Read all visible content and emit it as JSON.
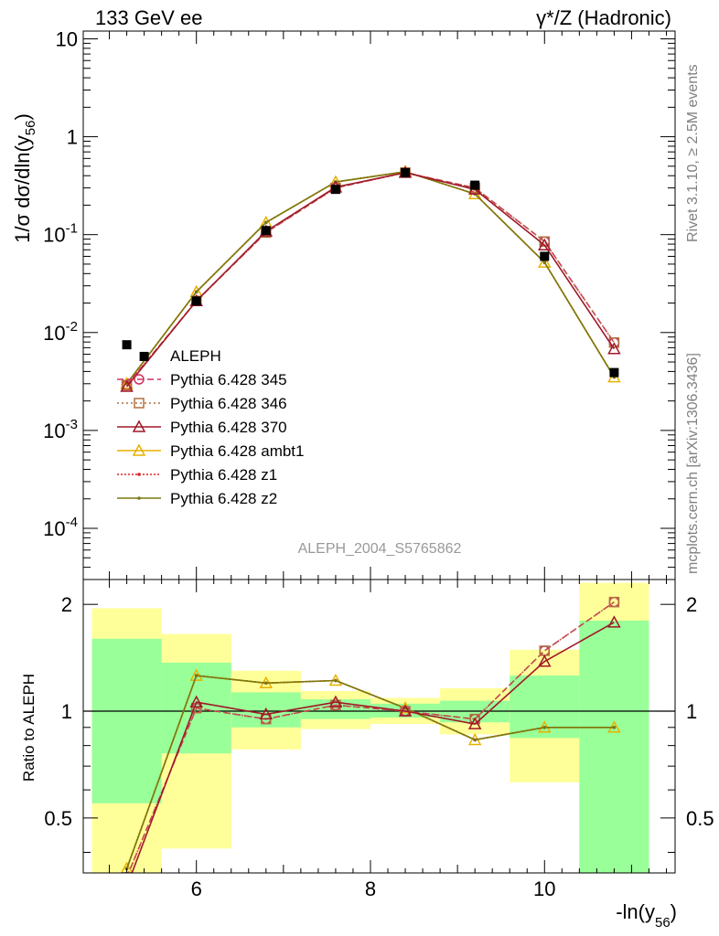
{
  "header": {
    "left": "133 GeV ee",
    "right": "γ*/Z (Hadronic)"
  },
  "side_labels": {
    "rivet": "Rivet 3.1.10, ≥ 2.5M events",
    "mcplots": "mcplots.cern.ch [arXiv:1306.3436]"
  },
  "analysis_id": "ALEPH_2004_S5765862",
  "axes": {
    "main_ylabel": "1/σ  dσ/dln(y",
    "main_ylabel_sub": "56",
    "ratio_ylabel": "Ratio to ALEPH",
    "xlabel": "-ln(y",
    "xlabel_sub": "56",
    "x_ticks": [
      "6",
      "8",
      "10"
    ],
    "main_y_ticks": [
      {
        "base": "10",
        "exp": "-4",
        "v": -4
      },
      {
        "base": "10",
        "exp": "-3",
        "v": -3
      },
      {
        "base": "10",
        "exp": "-2",
        "v": -2
      },
      {
        "base": "10",
        "exp": "-1",
        "v": -1
      },
      {
        "base": "1",
        "exp": "",
        "v": 0
      },
      {
        "base": "10",
        "exp": "",
        "v": 1
      }
    ],
    "ratio_y_ticks": [
      "0.5",
      "1",
      "2"
    ]
  },
  "colors": {
    "data": "#000000",
    "s345": "#d03060",
    "s346": "#b07040",
    "s370": "#a01828",
    "ambt1": "#e8b000",
    "z1": "#e02020",
    "z2": "#7a7a10",
    "band_inner": "#99ff99",
    "band_outer": "#ffff99",
    "analysis_text": "#999999",
    "side_text": "#808080"
  },
  "chart_data": {
    "type": "line",
    "xlim": [
      4.7,
      11.5
    ],
    "main_ylim": [
      3e-05,
      12
    ],
    "main_yscale": "log",
    "ratio_ylim": [
      0.35,
      2.35
    ],
    "ratio_yscale": "log",
    "bins": [
      {
        "lo": 4.8,
        "hi": 5.6,
        "x": 5.2,
        "y": 0.0075
      },
      {
        "lo": 5.6,
        "hi": 6.4,
        "x": 6.0,
        "y": 0.021
      },
      {
        "lo": 6.4,
        "hi": 7.2,
        "x": 6.8,
        "y": 0.11
      },
      {
        "lo": 7.2,
        "hi": 8.0,
        "x": 7.6,
        "y": 0.29
      },
      {
        "lo": 8.0,
        "hi": 8.8,
        "x": 8.4,
        "y": 0.43
      },
      {
        "lo": 8.8,
        "hi": 9.6,
        "x": 9.2,
        "y": 0.32
      },
      {
        "lo": 9.6,
        "hi": 10.4,
        "x": 10.0,
        "y": 0.06
      },
      {
        "lo": 10.4,
        "hi": 11.2,
        "x": 10.8,
        "y": 0.0039
      }
    ],
    "data_extra_points": [
      {
        "x": 5.4,
        "y": 0.0057
      }
    ],
    "ratio_band_inner": [
      [
        0.55,
        1.6
      ],
      [
        0.76,
        1.37
      ],
      [
        0.9,
        1.13
      ],
      [
        0.95,
        1.08
      ],
      [
        0.96,
        1.05
      ],
      [
        0.93,
        1.07
      ],
      [
        0.84,
        1.26
      ],
      [
        0.3,
        1.8
      ]
    ],
    "ratio_band_outer": [
      [
        0.35,
        1.95
      ],
      [
        0.41,
        1.65
      ],
      [
        0.78,
        1.3
      ],
      [
        0.89,
        1.14
      ],
      [
        0.92,
        1.09
      ],
      [
        0.86,
        1.16
      ],
      [
        0.63,
        1.49
      ],
      [
        0.3,
        2.3
      ]
    ],
    "series": [
      {
        "name": "ALEPH",
        "style": "data",
        "marker": "square",
        "dash": "none"
      },
      {
        "name": "Pythia 6.428 345",
        "style": "mc",
        "marker": "circle",
        "dash": "7,4",
        "values": [
          0.0029,
          0.021,
          0.105,
          0.3,
          0.43,
          0.3,
          0.085,
          0.0079
        ],
        "ratio": [
          0.34,
          1.02,
          0.95,
          1.04,
          1.0,
          0.95,
          1.48,
          2.03
        ]
      },
      {
        "name": "Pythia 6.428 346",
        "style": "mc",
        "marker": "square-open",
        "dash": "2,3",
        "values": [
          0.0029,
          0.021,
          0.105,
          0.3,
          0.43,
          0.3,
          0.085,
          0.0079
        ],
        "ratio": [
          0.34,
          1.02,
          0.95,
          1.04,
          1.0,
          0.95,
          1.48,
          2.03
        ]
      },
      {
        "name": "Pythia 6.428 370",
        "style": "mc",
        "marker": "triangle",
        "dash": "none",
        "values": [
          0.0028,
          0.021,
          0.108,
          0.305,
          0.43,
          0.29,
          0.078,
          0.0068
        ],
        "ratio": [
          0.32,
          1.06,
          0.98,
          1.06,
          1.0,
          0.92,
          1.38,
          1.78
        ]
      },
      {
        "name": "Pythia 6.428 ambt1",
        "style": "mc",
        "marker": "triangle",
        "dash": "none",
        "values": [
          0.003,
          0.026,
          0.133,
          0.345,
          0.44,
          0.26,
          0.052,
          0.0035
        ],
        "ratio": [
          0.36,
          1.26,
          1.2,
          1.22,
          1.02,
          0.83,
          0.9,
          0.9
        ]
      },
      {
        "name": "Pythia 6.428 z1",
        "style": "mc",
        "marker": "dot",
        "dash": "2,2",
        "values": [
          0.003,
          0.026,
          0.133,
          0.345,
          0.44,
          0.26,
          0.052,
          0.0035
        ],
        "ratio": [
          0.36,
          1.26,
          1.2,
          1.22,
          1.02,
          0.83,
          0.9,
          0.9
        ]
      },
      {
        "name": "Pythia 6.428 z2",
        "style": "mc",
        "marker": "dot",
        "dash": "none",
        "values": [
          0.003,
          0.026,
          0.133,
          0.345,
          0.44,
          0.26,
          0.052,
          0.0035
        ],
        "ratio": [
          0.36,
          1.26,
          1.2,
          1.22,
          1.02,
          0.83,
          0.9,
          0.9
        ]
      }
    ]
  }
}
